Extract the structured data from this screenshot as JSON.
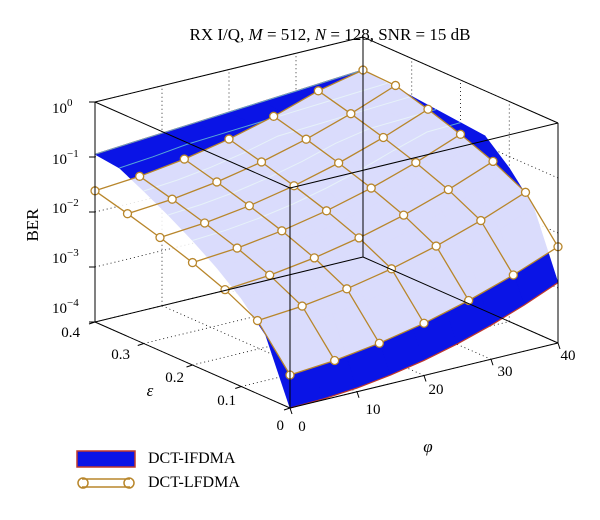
{
  "chart_data": {
    "type": "surface3d",
    "title": "RX I/Q, M = 512, N = 128, SNR = 15 dB",
    "title_parts": {
      "prefix": "RX I/Q, ",
      "m_var": "M",
      "m_val": " = 512, ",
      "n_var": "N",
      "n_val": " = 128, SNR = 15 dB"
    },
    "zlabel": "BER",
    "xlabel": "φ",
    "ylabel": "ε",
    "zscale": "log",
    "zlim": [
      0.0001,
      1
    ],
    "xlim": [
      0,
      40
    ],
    "ylim": [
      0,
      0.4
    ],
    "x_ticks": [
      "0",
      "10",
      "20",
      "30",
      "40"
    ],
    "y_ticks": [
      "0",
      "0.1",
      "0.2",
      "0.3",
      "0.4"
    ],
    "z_ticks": [
      {
        "base": "10",
        "exp": "0"
      },
      {
        "base": "10",
        "exp": "−1"
      },
      {
        "base": "10",
        "exp": "−2"
      },
      {
        "base": "10",
        "exp": "−3"
      },
      {
        "base": "10",
        "exp": "−4"
      }
    ],
    "grid": true,
    "legend_position": "bottom-left",
    "series": [
      {
        "name": "DCT-IFDMA",
        "color": "#0a14e6",
        "edge_color": "#c0392b",
        "style": "surface",
        "description_values": {
          "ber_at_phi0_eps0": 0.0001,
          "ber_plateau_high_offset": 0.1,
          "ber_near_top": 0.9
        }
      },
      {
        "name": "DCT-LFDMA",
        "color": "#b8862b",
        "style": "mesh-with-markers",
        "description_values": {
          "ber_at_phi0_eps0": 0.0004,
          "ber_at_phi40_eps0": 0.004,
          "ber_at_phi0_eps04": 0.05
        }
      }
    ]
  }
}
